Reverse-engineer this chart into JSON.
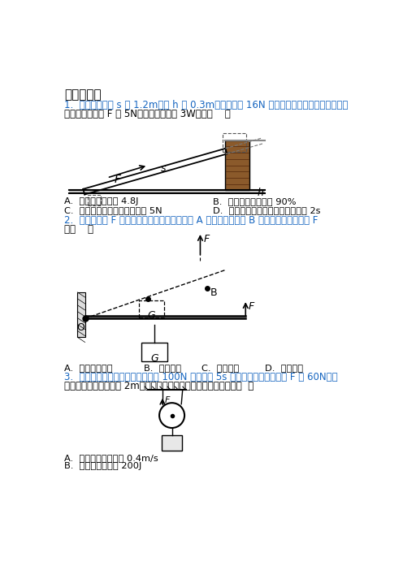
{
  "bg_color": "#ffffff",
  "text_color": "#000000",
  "blue_color": "#1565c0",
  "title": "一、选择题",
  "q1_line1": "1.  如图，斜面长 s 为 1.2m，高 h 为 0.3m，现将重为 16N 的物体沿斜面向上从底端匀速拉",
  "q1_line2": "到顶端。若拉力 F 为 5N，拉力的功率为 3W，则（    ）",
  "q1_optA": "A.  拉力做的总功为 4.8J",
  "q1_optB": "B.  斜面的机械效率为 90%",
  "q1_optC": "C.  斜面上物体受到的摩擦力为 5N",
  "q1_optD": "D.  物体由斜面底端运动到顶端用时 2s",
  "q2_line1": "2.  如图，保持 F 的方向竖直向上不变，将杆由 A 位置匀速转动到 B 位置，在这个过程中 F",
  "q2_line2": "将（    ）",
  "q2_optA": "A.  先变大后变小",
  "q2_optB": "B.  始终变大",
  "q2_optC": "C.  始终变小",
  "q2_optD": "D.  始终不变",
  "q3_line1": "3.  如图所示，利用动滑轮将重力为 100N 的物体在 5s 内匀速竖直提升，拉力 F 为 60N，绳",
  "q3_line2": "子自由端移动的距离为 2m，不计绳重及摩擦，下列说法正确的是（  ）",
  "q3_optA": "A.  物体移动的速度为 0.4m/s",
  "q3_optB": "B.  所做的有用功为 200J"
}
